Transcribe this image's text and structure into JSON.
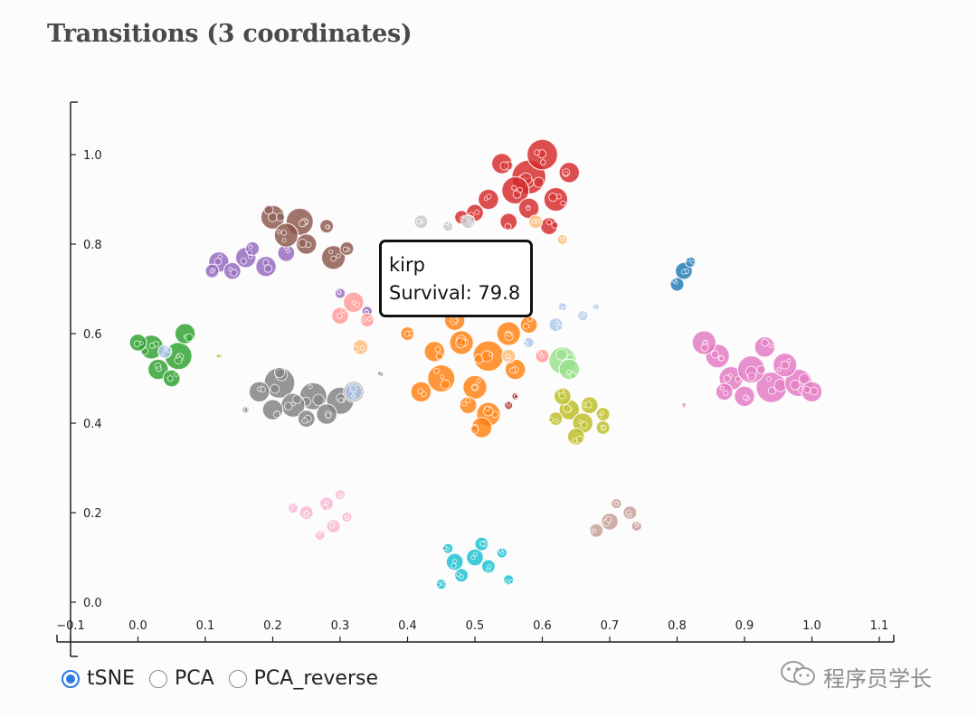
{
  "page": {
    "title": "Transitions (3 coordinates)"
  },
  "tooltip": {
    "name": "kirp",
    "survival_label": "Survival: 79.8"
  },
  "controls": {
    "options": [
      {
        "label": "tSNE",
        "checked": true
      },
      {
        "label": "PCA",
        "checked": false
      },
      {
        "label": "PCA_reverse",
        "checked": false
      }
    ]
  },
  "watermark": {
    "text": "程序员学长",
    "icon": "wechat-icon"
  },
  "chart_data": {
    "type": "scatter",
    "title": "Transitions (3 coordinates)",
    "xlabel": "",
    "ylabel": "",
    "xlim": [
      -0.1,
      1.1
    ],
    "ylim": [
      -0.09,
      1.12
    ],
    "x_ticks": [
      "−0.1",
      "0.0",
      "0.1",
      "0.2",
      "0.3",
      "0.4",
      "0.5",
      "0.6",
      "0.7",
      "0.8",
      "0.9",
      "1.0",
      "1.1"
    ],
    "y_ticks": [
      "0.0",
      "0.2",
      "0.4",
      "0.6",
      "0.8",
      "1.0"
    ],
    "legend": "none",
    "series": [
      {
        "name": "cluster-red",
        "color": "#d62728",
        "points": [
          [
            0.58,
            0.95,
            0.05
          ],
          [
            0.6,
            1.0,
            0.045
          ],
          [
            0.54,
            0.98,
            0.03
          ],
          [
            0.56,
            0.92,
            0.04
          ],
          [
            0.52,
            0.9,
            0.03
          ],
          [
            0.62,
            0.9,
            0.035
          ],
          [
            0.58,
            0.88,
            0.03
          ],
          [
            0.5,
            0.87,
            0.025
          ],
          [
            0.64,
            0.96,
            0.03
          ],
          [
            0.55,
            0.85,
            0.025
          ],
          [
            0.61,
            0.84,
            0.025
          ],
          [
            0.48,
            0.86,
            0.02
          ]
        ]
      },
      {
        "name": "cluster-orange",
        "color": "#ff7f0e",
        "points": [
          [
            0.48,
            0.58,
            0.035
          ],
          [
            0.52,
            0.55,
            0.045
          ],
          [
            0.45,
            0.5,
            0.04
          ],
          [
            0.5,
            0.48,
            0.035
          ],
          [
            0.55,
            0.6,
            0.035
          ],
          [
            0.42,
            0.47,
            0.03
          ],
          [
            0.52,
            0.42,
            0.035
          ],
          [
            0.47,
            0.63,
            0.03
          ],
          [
            0.56,
            0.52,
            0.03
          ],
          [
            0.44,
            0.56,
            0.03
          ],
          [
            0.51,
            0.39,
            0.03
          ],
          [
            0.58,
            0.62,
            0.025
          ],
          [
            0.4,
            0.6,
            0.02
          ],
          [
            0.49,
            0.44,
            0.025
          ]
        ]
      },
      {
        "name": "cluster-lightorange",
        "color": "#ffbb78",
        "points": [
          [
            0.33,
            0.57,
            0.022
          ],
          [
            0.63,
            0.81,
            0.015
          ],
          [
            0.59,
            0.85,
            0.02
          ],
          [
            0.55,
            0.55,
            0.02
          ]
        ]
      },
      {
        "name": "cluster-green",
        "color": "#2ca02c",
        "points": [
          [
            0.02,
            0.57,
            0.035
          ],
          [
            0.06,
            0.55,
            0.04
          ],
          [
            0.03,
            0.52,
            0.03
          ],
          [
            0.07,
            0.6,
            0.03
          ],
          [
            0.0,
            0.58,
            0.025
          ],
          [
            0.05,
            0.5,
            0.025
          ]
        ]
      },
      {
        "name": "cluster-lightgreen",
        "color": "#98df8a",
        "points": [
          [
            0.63,
            0.54,
            0.04
          ],
          [
            0.64,
            0.52,
            0.03
          ]
        ]
      },
      {
        "name": "cluster-purple",
        "color": "#9467bd",
        "points": [
          [
            0.12,
            0.76,
            0.03
          ],
          [
            0.16,
            0.77,
            0.03
          ],
          [
            0.19,
            0.75,
            0.03
          ],
          [
            0.14,
            0.74,
            0.025
          ],
          [
            0.22,
            0.78,
            0.025
          ],
          [
            0.11,
            0.74,
            0.02
          ],
          [
            0.17,
            0.79,
            0.02
          ],
          [
            0.34,
            0.65,
            0.015
          ],
          [
            0.3,
            0.69,
            0.015
          ]
        ]
      },
      {
        "name": "cluster-brown",
        "color": "#8c564b",
        "points": [
          [
            0.24,
            0.85,
            0.04
          ],
          [
            0.2,
            0.86,
            0.035
          ],
          [
            0.22,
            0.82,
            0.035
          ],
          [
            0.29,
            0.77,
            0.035
          ],
          [
            0.25,
            0.8,
            0.03
          ],
          [
            0.28,
            0.84,
            0.02
          ],
          [
            0.31,
            0.79,
            0.02
          ]
        ]
      },
      {
        "name": "cluster-tan",
        "color": "#c49c94",
        "points": [
          [
            0.7,
            0.18,
            0.025
          ],
          [
            0.73,
            0.2,
            0.02
          ],
          [
            0.68,
            0.16,
            0.02
          ],
          [
            0.74,
            0.17,
            0.015
          ],
          [
            0.71,
            0.22,
            0.015
          ]
        ]
      },
      {
        "name": "cluster-pink",
        "color": "#e377c2",
        "points": [
          [
            0.88,
            0.5,
            0.035
          ],
          [
            0.94,
            0.48,
            0.045
          ],
          [
            0.98,
            0.49,
            0.04
          ],
          [
            0.86,
            0.55,
            0.035
          ],
          [
            0.91,
            0.52,
            0.04
          ],
          [
            0.96,
            0.53,
            0.035
          ],
          [
            0.84,
            0.58,
            0.035
          ],
          [
            0.9,
            0.46,
            0.03
          ],
          [
            1.0,
            0.47,
            0.03
          ],
          [
            0.87,
            0.47,
            0.025
          ],
          [
            0.93,
            0.57,
            0.03
          ],
          [
            0.81,
            0.44,
            0.007
          ]
        ]
      },
      {
        "name": "cluster-lightpink",
        "color": "#f7b6d2",
        "points": [
          [
            0.25,
            0.2,
            0.02
          ],
          [
            0.28,
            0.22,
            0.02
          ],
          [
            0.29,
            0.17,
            0.02
          ],
          [
            0.27,
            0.15,
            0.015
          ],
          [
            0.23,
            0.21,
            0.015
          ],
          [
            0.3,
            0.24,
            0.015
          ],
          [
            0.31,
            0.19,
            0.015
          ]
        ]
      },
      {
        "name": "cluster-salmon",
        "color": "#ff9896",
        "points": [
          [
            0.32,
            0.67,
            0.03
          ],
          [
            0.3,
            0.64,
            0.025
          ],
          [
            0.34,
            0.63,
            0.02
          ],
          [
            0.6,
            0.55,
            0.02
          ]
        ]
      },
      {
        "name": "cluster-gray",
        "color": "#7f7f7f",
        "points": [
          [
            0.21,
            0.49,
            0.045
          ],
          [
            0.26,
            0.46,
            0.04
          ],
          [
            0.3,
            0.45,
            0.04
          ],
          [
            0.23,
            0.44,
            0.035
          ],
          [
            0.2,
            0.43,
            0.03
          ],
          [
            0.28,
            0.42,
            0.03
          ],
          [
            0.18,
            0.47,
            0.03
          ],
          [
            0.32,
            0.47,
            0.03
          ],
          [
            0.25,
            0.41,
            0.025
          ],
          [
            0.16,
            0.43,
            0.01
          ],
          [
            0.36,
            0.51,
            0.008
          ]
        ]
      },
      {
        "name": "cluster-lightgray",
        "color": "#c7c7c7",
        "points": [
          [
            0.42,
            0.85,
            0.02
          ],
          [
            0.49,
            0.85,
            0.02
          ],
          [
            0.46,
            0.84,
            0.015
          ]
        ]
      },
      {
        "name": "cluster-olive",
        "color": "#bcbd22",
        "points": [
          [
            0.64,
            0.43,
            0.03
          ],
          [
            0.66,
            0.4,
            0.03
          ],
          [
            0.63,
            0.46,
            0.025
          ],
          [
            0.67,
            0.44,
            0.025
          ],
          [
            0.65,
            0.37,
            0.025
          ],
          [
            0.69,
            0.42,
            0.02
          ],
          [
            0.62,
            0.41,
            0.02
          ],
          [
            0.69,
            0.39,
            0.02
          ],
          [
            0.12,
            0.55,
            0.007
          ]
        ]
      },
      {
        "name": "cluster-cyan",
        "color": "#17becf",
        "points": [
          [
            0.47,
            0.09,
            0.025
          ],
          [
            0.5,
            0.1,
            0.025
          ],
          [
            0.48,
            0.06,
            0.02
          ],
          [
            0.52,
            0.08,
            0.02
          ],
          [
            0.45,
            0.04,
            0.015
          ],
          [
            0.51,
            0.13,
            0.02
          ],
          [
            0.54,
            0.11,
            0.015
          ],
          [
            0.55,
            0.05,
            0.015
          ],
          [
            0.46,
            0.12,
            0.015
          ]
        ]
      },
      {
        "name": "cluster-blue",
        "color": "#1f77b4",
        "points": [
          [
            0.81,
            0.74,
            0.025
          ],
          [
            0.8,
            0.71,
            0.02
          ],
          [
            0.82,
            0.76,
            0.015
          ]
        ]
      },
      {
        "name": "cluster-lightblue",
        "color": "#aec7e8",
        "points": [
          [
            0.32,
            0.47,
            0.025
          ],
          [
            0.62,
            0.62,
            0.02
          ],
          [
            0.66,
            0.64,
            0.015
          ],
          [
            0.63,
            0.66,
            0.012
          ],
          [
            0.68,
            0.66,
            0.01
          ],
          [
            0.04,
            0.56,
            0.02
          ],
          [
            0.58,
            0.58,
            0.015
          ]
        ]
      },
      {
        "name": "cluster-darkred",
        "color": "#a01010",
        "points": [
          [
            0.55,
            0.44,
            0.012
          ],
          [
            0.56,
            0.46,
            0.01
          ]
        ]
      }
    ]
  }
}
